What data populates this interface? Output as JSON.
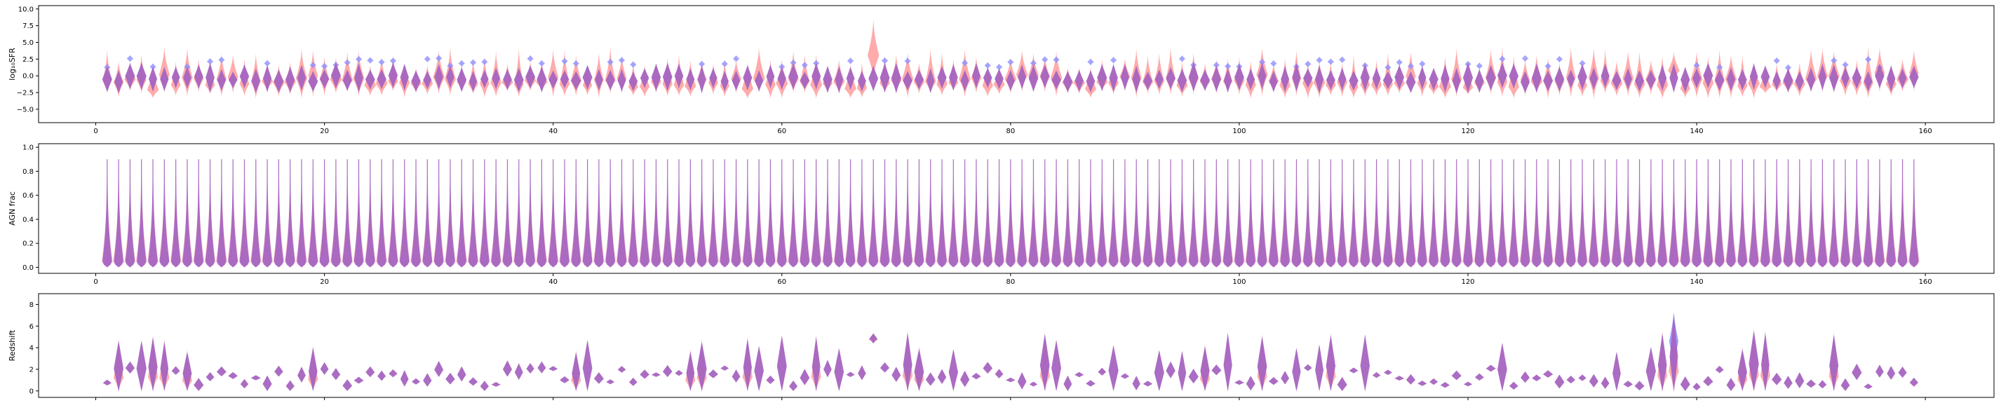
{
  "colors": {
    "series_a": "#ff8f8f",
    "series_b": "#8f8fff",
    "overlap": "#a764c0",
    "axes": "#000000",
    "background": "#ffffff"
  },
  "chart_data": [
    {
      "type": "violin",
      "ylabel": "log₁₀SFR",
      "xlim": [
        -5,
        166
      ],
      "ylim": [
        -7,
        10.5
      ],
      "xticks": [
        0,
        20,
        40,
        60,
        80,
        100,
        120,
        140,
        160
      ],
      "yticks": [
        -5.0,
        -2.5,
        0.0,
        2.5,
        5.0,
        7.5,
        10.0
      ],
      "ytick_labels": [
        "−5.0",
        "−2.5",
        "0.0",
        "2.5",
        "5.0",
        "7.5",
        "10.0"
      ],
      "grid": false,
      "positions": "1-159",
      "median": 0.0,
      "spread": [
        -2.5,
        3.0
      ],
      "notable": {
        "68": [
          -0.5,
          8.3
        ],
        "138": [
          -1.0,
          3.5
        ]
      }
    },
    {
      "type": "violin",
      "ylabel": "AGN frac",
      "xlim": [
        -5,
        166
      ],
      "ylim": [
        -0.05,
        1.03
      ],
      "xticks": [
        0,
        20,
        40,
        60,
        80,
        100,
        120,
        140,
        160
      ],
      "yticks": [
        0.0,
        0.2,
        0.4,
        0.6,
        0.8,
        1.0
      ],
      "ytick_labels": [
        "0.0",
        "0.2",
        "0.4",
        "0.6",
        "0.8",
        "1.0"
      ],
      "grid": false,
      "positions": "1-159",
      "range": [
        0.0,
        0.9
      ]
    },
    {
      "type": "violin",
      "ylabel": "Redshift",
      "xlim": [
        -5,
        166
      ],
      "ylim": [
        -0.6,
        9.0
      ],
      "xticks": [
        0,
        20,
        40,
        60,
        80,
        100,
        120,
        140,
        160
      ],
      "yticks": [
        0,
        2,
        4,
        6,
        8
      ],
      "ytick_labels": [
        "0",
        "2",
        "4",
        "6",
        "8"
      ],
      "grid": false,
      "positions": "1-159",
      "notable": {
        "68": [
          4.5,
          5.2
        ],
        "138": [
          0.0,
          7.0
        ]
      }
    }
  ]
}
